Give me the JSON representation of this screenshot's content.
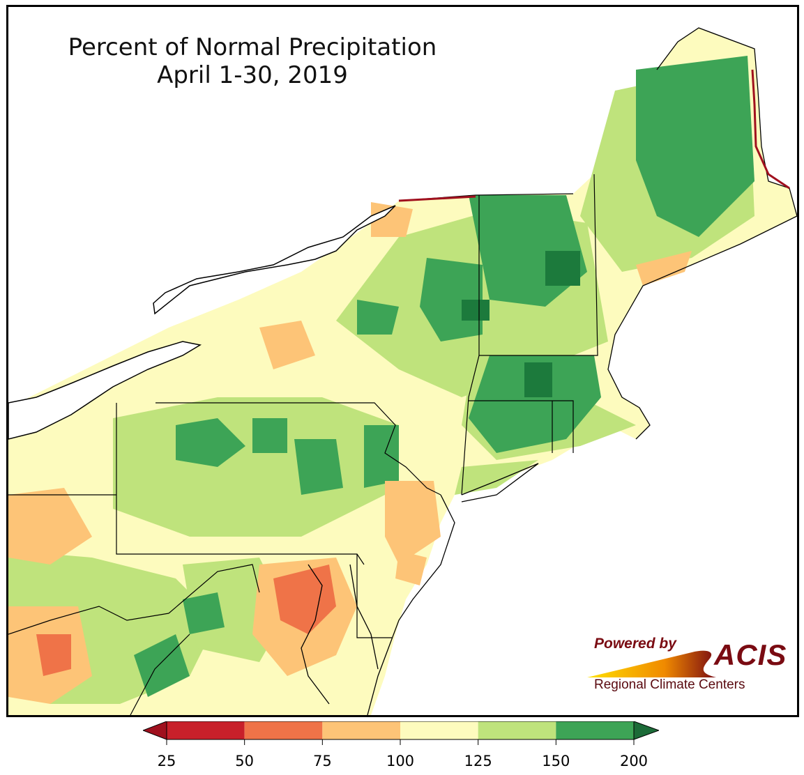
{
  "title": {
    "line1": "Percent of Normal Precipitation",
    "line2": "April 1-30, 2019"
  },
  "logo": {
    "powered_by": "Powered by",
    "brand": "ACIS",
    "subtitle": "Regional Climate Centers"
  },
  "legend": {
    "ticks": [
      "25",
      "50",
      "75",
      "100",
      "125",
      "150",
      "200"
    ],
    "bins": [
      {
        "range": "25-50",
        "color": "#c8202a"
      },
      {
        "range": "50-75",
        "color": "#ef7348"
      },
      {
        "range": "75-100",
        "color": "#fdc477"
      },
      {
        "range": "100-125",
        "color": "#fdfbbe"
      },
      {
        "range": "125-150",
        "color": "#bfe37c"
      },
      {
        "range": "150-200",
        "color": "#3da456"
      }
    ],
    "under_color": "#a0101e",
    "over_color": "#1c6b38"
  },
  "map_colors": {
    "lake": "#ffffff",
    "ocean": "#ffffff",
    "base": "#fdfbbe",
    "dark_green": "#1c7a3c"
  }
}
